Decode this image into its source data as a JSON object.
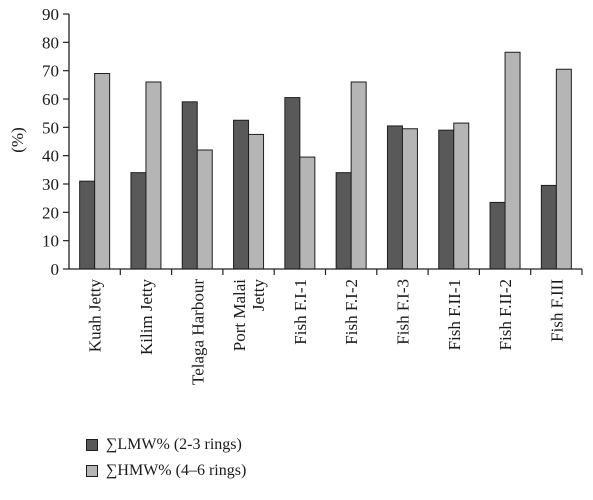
{
  "chart_data": {
    "type": "bar",
    "title": "",
    "xlabel": "",
    "ylabel": "(%)",
    "ylim": [
      0,
      90
    ],
    "yticks": [
      0,
      10,
      20,
      30,
      40,
      50,
      60,
      70,
      80,
      90
    ],
    "grid": false,
    "legend_position": "bottom-left",
    "categories": [
      [
        "Kuah Jetty"
      ],
      [
        "Kilim Jetty"
      ],
      [
        "Telaga Harbour"
      ],
      [
        "Port Malai",
        "Jetty"
      ],
      [
        "Fish F.I-1"
      ],
      [
        "Fish F.I-2"
      ],
      [
        "Fish F.I-3"
      ],
      [
        "Fish F.II-1"
      ],
      [
        "Fish F.II-2"
      ],
      [
        "Fish F.III"
      ]
    ],
    "series": [
      {
        "name": "∑LMW% (2-3 rings)",
        "color": "#595959",
        "values": [
          31,
          34,
          59,
          52.5,
          60.5,
          34,
          50.5,
          49,
          23.5,
          29.5
        ]
      },
      {
        "name": "∑HMW% (4–6 rings)",
        "color": "#b5b5b5",
        "values": [
          69,
          66,
          42,
          47.5,
          39.5,
          66,
          49.5,
          51.5,
          76.5,
          70.5
        ]
      }
    ]
  }
}
